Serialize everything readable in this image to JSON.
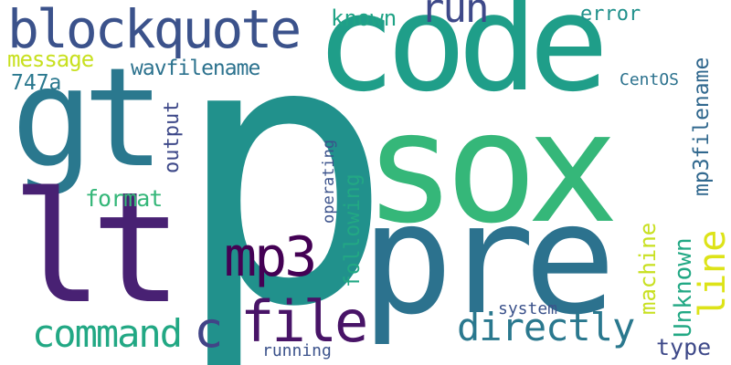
{
  "background": "#ffffff",
  "words": [
    {
      "text": "p",
      "color": "#21918c"
    },
    {
      "text": "sox",
      "color": "#35b779"
    },
    {
      "text": "code",
      "color": "#1f9e89"
    },
    {
      "text": "pre",
      "color": "#2c728e"
    },
    {
      "text": "gt",
      "color": "#2a788e"
    },
    {
      "text": "lt",
      "color": "#482173"
    },
    {
      "text": "blockquote",
      "color": "#3b528b"
    },
    {
      "text": "mp3",
      "color": "#440154"
    },
    {
      "text": "file",
      "color": "#481467"
    },
    {
      "text": "command",
      "color": "#22a884"
    },
    {
      "text": "c",
      "color": "#414487"
    },
    {
      "text": "directly",
      "color": "#2a788e"
    },
    {
      "text": "run",
      "color": "#3e4989"
    },
    {
      "text": "known",
      "color": "#20a386"
    },
    {
      "text": "error",
      "color": "#21918c"
    },
    {
      "text": "message",
      "color": "#c8e020"
    },
    {
      "text": "wavfilename",
      "color": "#2c728e"
    },
    {
      "text": "747a",
      "color": "#2a788e"
    },
    {
      "text": "output",
      "color": "#3e4989"
    },
    {
      "text": "format",
      "color": "#35b779"
    },
    {
      "text": "operating",
      "color": "#3b528b"
    },
    {
      "text": "following",
      "color": "#22a884"
    },
    {
      "text": "machine",
      "color": "#c8e020"
    },
    {
      "text": "Unknown",
      "color": "#22a884"
    },
    {
      "text": "line",
      "color": "#dde318"
    },
    {
      "text": "mp3filename",
      "color": "#31688e"
    },
    {
      "text": "CentOS",
      "color": "#2c728e"
    },
    {
      "text": "system",
      "color": "#3b528b"
    },
    {
      "text": "running",
      "color": "#3b528b"
    },
    {
      "text": "type",
      "color": "#3e4989"
    }
  ]
}
